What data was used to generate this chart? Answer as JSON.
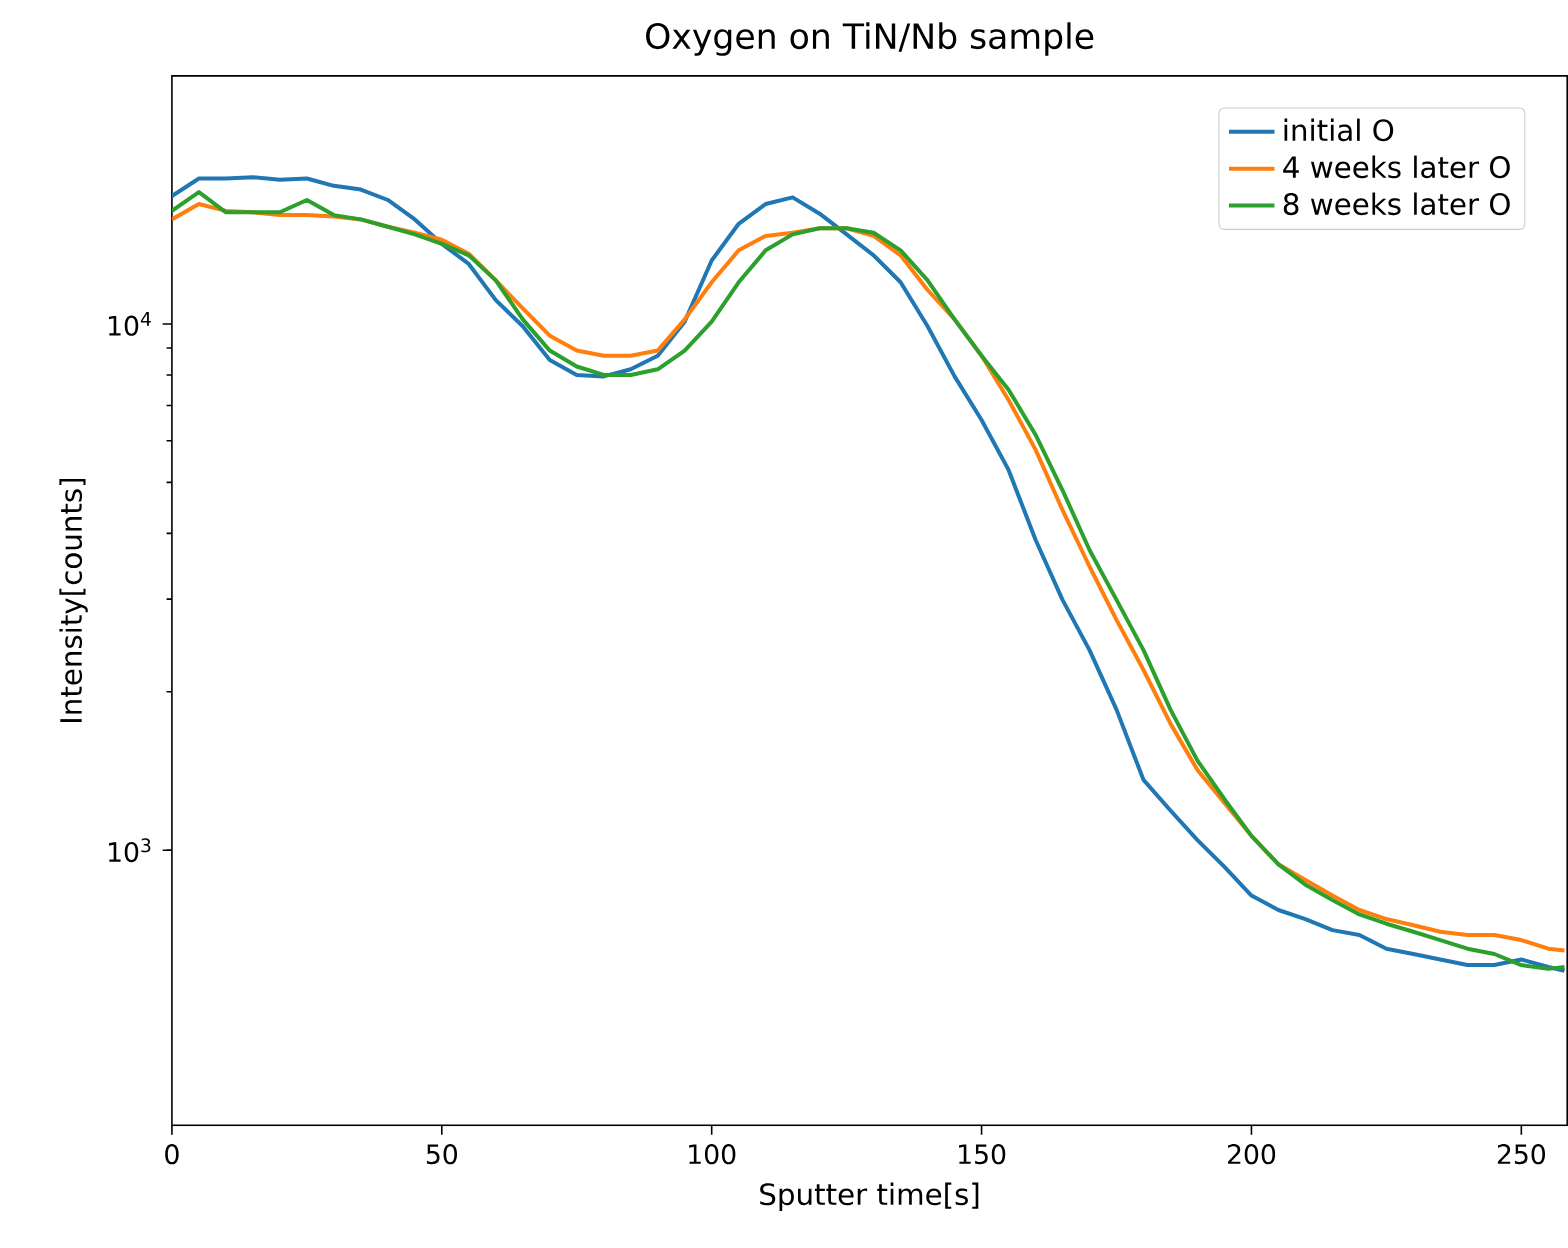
{
  "chart_data": {
    "type": "line",
    "title": "Oxygen on TiN/Nb sample",
    "xlabel": "Sputter time[s]",
    "ylabel": "Intensity[counts]",
    "log": "y",
    "legend": "top right",
    "xlim": [
      0,
      258.5
    ],
    "ylim": [
      300,
      29600
    ],
    "xticks": [
      0,
      50,
      100,
      150,
      200,
      250
    ],
    "yticks": [
      {
        "value": 1000,
        "label": "10$^{3}$"
      },
      {
        "value": 10000,
        "label": "10$^{4}$"
      }
    ],
    "x": [
      0,
      5,
      10,
      15,
      20,
      25,
      30,
      35,
      40,
      45,
      50,
      55,
      60,
      65,
      70,
      75,
      80,
      85,
      90,
      95,
      100,
      105,
      110,
      115,
      120,
      125,
      130,
      135,
      140,
      145,
      150,
      155,
      160,
      165,
      170,
      175,
      180,
      185,
      190,
      195,
      200,
      205,
      210,
      215,
      220,
      225,
      230,
      235,
      240,
      245,
      250,
      255,
      258
    ],
    "series": [
      {
        "name": "initial O",
        "color": "#1f77b4",
        "values": [
          17500,
          18900,
          18900,
          19000,
          18800,
          18900,
          18300,
          18000,
          17200,
          15800,
          14200,
          13000,
          11100,
          9900,
          8540,
          8000,
          7950,
          8200,
          8700,
          10100,
          13200,
          15500,
          16900,
          17400,
          16200,
          14800,
          13500,
          12000,
          9900,
          7950,
          6570,
          5280,
          3890,
          2990,
          2400,
          1850,
          1360,
          1190,
          1045,
          930,
          820,
          770,
          740,
          705,
          690,
          650,
          635,
          620,
          605,
          605,
          620,
          600,
          590
        ]
      },
      {
        "name": "4 weeks later O",
        "color": "#ff7f0e",
        "values": [
          15800,
          16900,
          16400,
          16300,
          16100,
          16100,
          16000,
          15800,
          15300,
          14900,
          14450,
          13600,
          12100,
          10700,
          9500,
          8900,
          8700,
          8700,
          8900,
          10200,
          12000,
          13800,
          14700,
          14900,
          15200,
          15200,
          14700,
          13500,
          11600,
          10200,
          8700,
          7170,
          5770,
          4430,
          3460,
          2740,
          2200,
          1740,
          1420,
          1230,
          1065,
          940,
          878,
          820,
          770,
          740,
          720,
          700,
          690,
          690,
          675,
          650,
          645
        ]
      },
      {
        "name": "8 weeks later O",
        "color": "#2ca02c",
        "values": [
          16400,
          17800,
          16300,
          16300,
          16300,
          17200,
          16100,
          15800,
          15300,
          14800,
          14200,
          13500,
          12100,
          10200,
          8900,
          8300,
          8000,
          8000,
          8200,
          8900,
          10100,
          12000,
          13800,
          14800,
          15200,
          15200,
          14900,
          13800,
          12100,
          10200,
          8700,
          7500,
          6160,
          4830,
          3720,
          2990,
          2400,
          1850,
          1480,
          1250,
          1065,
          940,
          860,
          804,
          755,
          725,
          700,
          675,
          650,
          635,
          605,
          595,
          600
        ]
      }
    ]
  }
}
